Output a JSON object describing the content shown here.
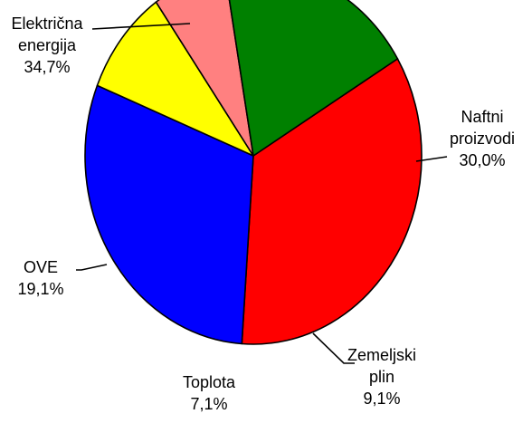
{
  "chart_data": {
    "type": "pie",
    "start_angle_deg": -31,
    "direction": "clockwise",
    "slices": [
      {
        "label_lines": [
          "Električna",
          "energija"
        ],
        "value_text": "34,7%",
        "value": 34.7,
        "color": "#FF0000"
      },
      {
        "label_lines": [
          "Naftni",
          "proizvodi"
        ],
        "value_text": "30,0%",
        "value": 30.0,
        "color": "#0000FF"
      },
      {
        "label_lines": [
          "Zemeljski",
          "plin"
        ],
        "value_text": "9,1%",
        "value": 9.1,
        "color": "#FFFF00"
      },
      {
        "label_lines": [
          "Toplota"
        ],
        "value_text": "7,1%",
        "value": 7.1,
        "color": "#FF8080"
      },
      {
        "label_lines": [
          "OVE"
        ],
        "value_text": "19,1%",
        "value": 19.1,
        "color": "#008000"
      }
    ]
  }
}
